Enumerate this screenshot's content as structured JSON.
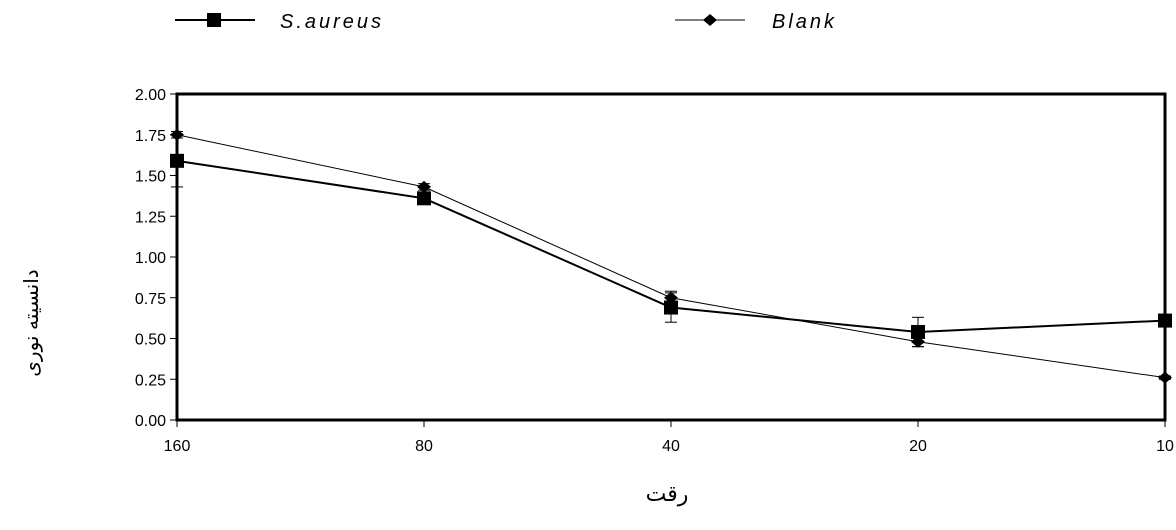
{
  "chart_data": {
    "type": "line",
    "categories": [
      "160",
      "80",
      "40",
      "20",
      "10"
    ],
    "series": [
      {
        "name": "S.aureus",
        "marker": "square",
        "color": "#000000",
        "values": [
          1.59,
          1.36,
          0.69,
          0.54,
          0.61
        ],
        "error": [
          0.16,
          0.03,
          0.09,
          0.09,
          0.02
        ]
      },
      {
        "name": "Blank",
        "marker": "diamond",
        "color": "#000000",
        "values": [
          1.75,
          1.43,
          0.75,
          0.48,
          0.26
        ],
        "error": [
          0.02,
          0.02,
          0.04,
          0.03,
          0.01
        ]
      }
    ],
    "xlabel": "رقت",
    "ylabel": "دانسیته نوری",
    "ylim": [
      0,
      2
    ],
    "yticks": [
      "0.00",
      "0.25",
      "0.50",
      "0.75",
      "1.00",
      "1.25",
      "1.50",
      "1.75",
      "2.00"
    ],
    "grid": false,
    "legend_position": "top"
  }
}
